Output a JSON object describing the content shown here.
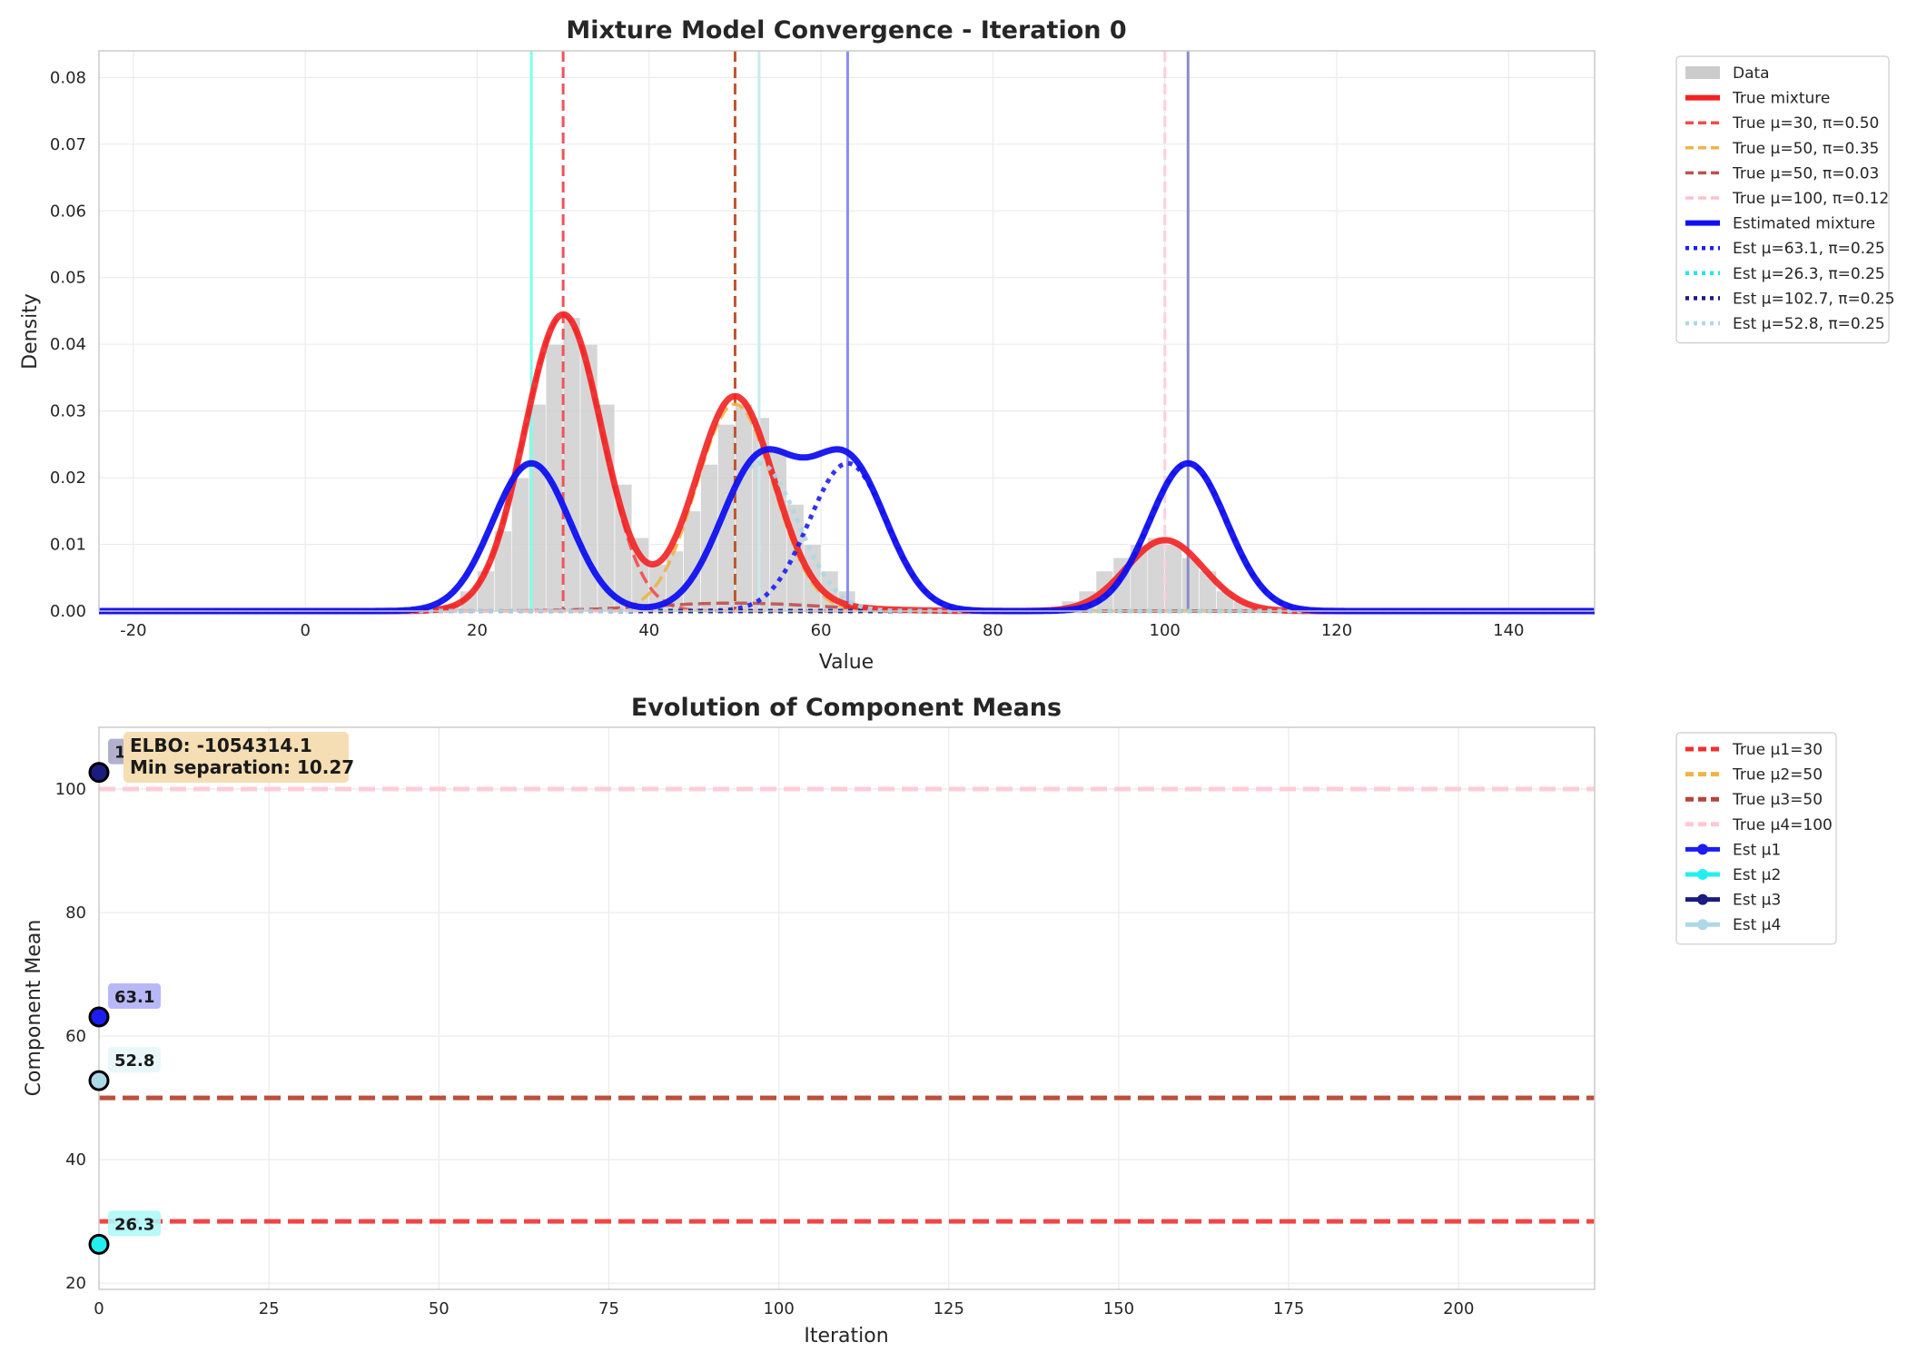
{
  "chart_data": [
    {
      "type": "line",
      "title": "Mixture Model Convergence - Iteration 0",
      "xlabel": "Value",
      "ylabel": "Density",
      "xlim": [
        -24,
        150
      ],
      "ylim": [
        0,
        0.084
      ],
      "xticks": [
        -20,
        0,
        20,
        40,
        60,
        80,
        100,
        120,
        140
      ],
      "yticks": [
        0.0,
        0.01,
        0.02,
        0.03,
        0.04,
        0.05,
        0.06,
        0.07,
        0.08
      ],
      "ytick_labels": [
        "0.00",
        "0.01",
        "0.02",
        "0.03",
        "0.04",
        "0.05",
        "0.06",
        "0.07",
        "0.08"
      ],
      "grid": true,
      "legend_position": "outside right",
      "histogram": {
        "name": "Data",
        "color": "#cccccc",
        "bin_starts": [
          16,
          18,
          20,
          22,
          24,
          26,
          28,
          30,
          32,
          34,
          36,
          38,
          40,
          42,
          44,
          46,
          48,
          50,
          52,
          54,
          56,
          58,
          60,
          62,
          64,
          66,
          68,
          86,
          88,
          90,
          92,
          94,
          96,
          98,
          100,
          102,
          104,
          106,
          108,
          110,
          112
        ],
        "bin_width": 2,
        "heights": [
          0.001,
          0.003,
          0.006,
          0.012,
          0.02,
          0.031,
          0.04,
          0.044,
          0.04,
          0.031,
          0.019,
          0.011,
          0.007,
          0.009,
          0.015,
          0.022,
          0.028,
          0.031,
          0.029,
          0.024,
          0.016,
          0.01,
          0.006,
          0.003,
          0.001,
          0.0006,
          0.0002,
          0.0006,
          0.0015,
          0.003,
          0.006,
          0.008,
          0.01,
          0.011,
          0.01,
          0.008,
          0.006,
          0.003,
          0.0015,
          0.0006,
          0.0002
        ]
      },
      "true_components": [
        {
          "name": "True μ=30, π=0.50",
          "mu": 30,
          "pi": 0.5,
          "sigma": 4.5,
          "color": "#f24b4b"
        },
        {
          "name": "True μ=50, π=0.35",
          "mu": 50,
          "pi": 0.35,
          "sigma": 4.5,
          "color": "#f0b347"
        },
        {
          "name": "True μ=50, π=0.03",
          "mu": 50,
          "pi": 0.03,
          "sigma": 10,
          "color": "#c0504d"
        },
        {
          "name": "True μ=100, π=0.12",
          "mu": 100,
          "pi": 0.12,
          "sigma": 4.5,
          "color": "#ffc0cb"
        }
      ],
      "true_mixture": {
        "name": "True mixture",
        "color": "#f22222"
      },
      "est_components": [
        {
          "name": "Est μ=63.1, π=0.25",
          "mu": 63.1,
          "pi": 0.25,
          "sigma": 4.5,
          "color": "#1d1df2"
        },
        {
          "name": "Est μ=26.3, π=0.25",
          "mu": 26.3,
          "pi": 0.25,
          "sigma": 4.5,
          "color": "#22e8e8"
        },
        {
          "name": "Est μ=102.7, π=0.25",
          "mu": 102.7,
          "pi": 0.25,
          "sigma": 4.5,
          "color": "#1c1c80"
        },
        {
          "name": "Est μ=52.8, π=0.25",
          "mu": 52.8,
          "pi": 0.25,
          "sigma": 4.5,
          "color": "#add8e6"
        }
      ],
      "est_mixture": {
        "name": "Estimated mixture",
        "color": "#1111f0"
      },
      "vlines": [
        {
          "x": 26.3,
          "color": "#7fffee",
          "style": "solid"
        },
        {
          "x": 30,
          "color": "#ee5555",
          "style": "dashed"
        },
        {
          "x": 50,
          "color": "#c05530",
          "style": "dashed"
        },
        {
          "x": 52.8,
          "color": "#c9eaf0",
          "style": "solid"
        },
        {
          "x": 63.1,
          "color": "#8c8cf2",
          "style": "solid"
        },
        {
          "x": 100,
          "color": "#ffd0dc",
          "style": "dashed"
        },
        {
          "x": 102.7,
          "color": "#8c8cc8",
          "style": "solid"
        }
      ]
    },
    {
      "type": "line",
      "title": "Evolution of Component Means",
      "xlabel": "Iteration",
      "ylabel": "Component Mean",
      "xlim": [
        0,
        220
      ],
      "ylim": [
        19,
        110
      ],
      "xticks": [
        0,
        25,
        50,
        75,
        100,
        125,
        150,
        175,
        200
      ],
      "yticks": [
        20,
        40,
        60,
        80,
        100
      ],
      "grid": true,
      "legend_position": "outside right",
      "true_lines": [
        {
          "name": "True μ1=30",
          "value": 30,
          "color": "#f03030"
        },
        {
          "name": "True μ2=50",
          "value": 50,
          "color": "#f0b347"
        },
        {
          "name": "True μ3=50",
          "value": 50,
          "color": "#b5453a"
        },
        {
          "name": "True μ4=100",
          "value": 100,
          "color": "#ffc8d4"
        }
      ],
      "series": [
        {
          "name": "Est μ1",
          "x": [
            0
          ],
          "values": [
            63.1
          ],
          "color": "#1d1df2",
          "label": "63.1",
          "label_bg": "#b0b0f8"
        },
        {
          "name": "Est μ2",
          "x": [
            0
          ],
          "values": [
            26.3
          ],
          "color": "#22f0f0",
          "label": "26.3",
          "label_bg": "#b0f8f8"
        },
        {
          "name": "Est μ3",
          "x": [
            0
          ],
          "values": [
            102.7
          ],
          "color": "#1c1c80",
          "label": "102.7",
          "label_bg": "#a8a8c8"
        },
        {
          "name": "Est μ4",
          "x": [
            0
          ],
          "values": [
            52.8
          ],
          "color": "#add8e6",
          "label": "52.8",
          "label_bg": "#e8f6fa"
        }
      ],
      "annotation": {
        "line1": "ELBO: -1054314.1",
        "line2": "Min separation: 10.27",
        "bg": "#f5deb3"
      }
    }
  ]
}
